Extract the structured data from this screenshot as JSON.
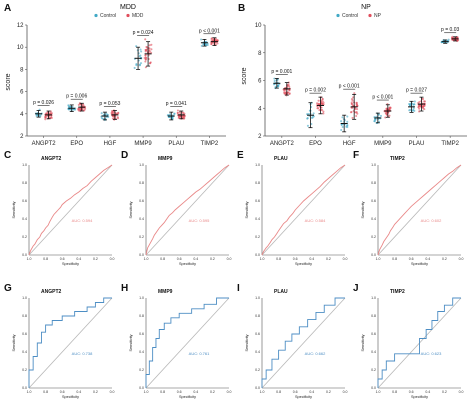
{
  "colors": {
    "control": "#41a9c6",
    "mdd": "#e04e5c",
    "roc_red": "#e98888",
    "roc_blue": "#4d8ec4",
    "diag": "#b8b8b8",
    "axis": "#555555"
  },
  "chart_data": [
    {
      "panel": "A",
      "type": "scatter",
      "title": "MDD",
      "legend": [
        "Control",
        "MDD"
      ],
      "legend_position": "top",
      "ylabel": "score",
      "ylim": [
        2,
        12
      ],
      "yticks": [
        2,
        4,
        6,
        8,
        10,
        12
      ],
      "categories": [
        "ANGPT2",
        "EPO",
        "HGF",
        "MMP9",
        "PLAU",
        "TIMP2"
      ],
      "series": [
        {
          "name": "Control",
          "mean": [
            4.0,
            4.5,
            3.8,
            9.0,
            3.8,
            10.4
          ],
          "sd": [
            0.3,
            0.3,
            0.35,
            1.0,
            0.35,
            0.3
          ]
        },
        {
          "name": "MDD",
          "mean": [
            3.9,
            4.6,
            3.9,
            9.4,
            3.9,
            10.5
          ],
          "sd": [
            0.35,
            0.35,
            0.4,
            1.1,
            0.35,
            0.35
          ]
        }
      ],
      "pvalues": [
        "p = 0.026",
        "p = 0.006",
        "p = 0.053",
        "p = 0.024",
        "p = 0.041",
        "p < 0.001"
      ]
    },
    {
      "panel": "B",
      "type": "scatter",
      "title": "NP",
      "legend": [
        "Control",
        "NP"
      ],
      "legend_position": "top",
      "ylabel": "score",
      "ylim": [
        2,
        10
      ],
      "yticks": [
        2,
        4,
        6,
        8,
        10
      ],
      "categories": [
        "ANGPT2",
        "EPO",
        "HGF",
        "MMP9",
        "PLAU",
        "TIMP2"
      ],
      "series": [
        {
          "name": "Control",
          "mean": [
            5.8,
            3.5,
            2.9,
            3.3,
            4.1,
            8.8
          ],
          "sd": [
            0.35,
            0.9,
            0.6,
            0.35,
            0.4,
            0.12
          ]
        },
        {
          "name": "NP",
          "mean": [
            5.4,
            4.2,
            4.1,
            3.8,
            4.3,
            9.0
          ],
          "sd": [
            0.45,
            0.6,
            0.9,
            0.45,
            0.5,
            0.15
          ]
        }
      ],
      "pvalues": [
        "p = 0.001",
        "p = 0.002",
        "p < 0.001",
        "p < 0.001",
        "p = 0.027",
        "p = 0.03"
      ]
    },
    {
      "panel": "C",
      "type": "line",
      "title": "ANGPT2",
      "auc_label": "AUC: 0.594",
      "xlabel": "Specificity",
      "ylabel": "Sensitivity",
      "x": [
        1.0,
        0.98,
        0.95,
        0.93,
        0.9,
        0.87,
        0.85,
        0.82,
        0.8,
        0.77,
        0.75,
        0.72,
        0.7,
        0.67,
        0.65,
        0.62,
        0.6,
        0.55,
        0.5,
        0.45,
        0.4,
        0.35,
        0.3,
        0.25,
        0.2,
        0.15,
        0.1,
        0.05,
        0.0
      ],
      "y": [
        0.0,
        0.05,
        0.1,
        0.12,
        0.17,
        0.2,
        0.24,
        0.27,
        0.3,
        0.33,
        0.37,
        0.42,
        0.45,
        0.48,
        0.5,
        0.53,
        0.56,
        0.6,
        0.63,
        0.67,
        0.7,
        0.74,
        0.77,
        0.82,
        0.86,
        0.9,
        0.94,
        0.97,
        1.0
      ]
    },
    {
      "panel": "D",
      "type": "line",
      "title": "MMP9",
      "auc_label": "AUC: 0.595",
      "xlabel": "Specificity",
      "ylabel": "Sensitivity",
      "x": [
        1.0,
        0.98,
        0.95,
        0.92,
        0.9,
        0.87,
        0.84,
        0.81,
        0.78,
        0.75,
        0.72,
        0.68,
        0.65,
        0.6,
        0.55,
        0.5,
        0.45,
        0.4,
        0.35,
        0.3,
        0.25,
        0.2,
        0.15,
        0.1,
        0.05,
        0.0
      ],
      "y": [
        0.0,
        0.08,
        0.13,
        0.18,
        0.22,
        0.26,
        0.3,
        0.33,
        0.36,
        0.4,
        0.44,
        0.47,
        0.5,
        0.54,
        0.58,
        0.62,
        0.66,
        0.7,
        0.73,
        0.77,
        0.81,
        0.85,
        0.89,
        0.93,
        0.97,
        1.0
      ]
    },
    {
      "panel": "E",
      "type": "line",
      "title": "PLAU",
      "auc_label": "AUC: 0.584",
      "xlabel": "Specificity",
      "ylabel": "Sensitivity",
      "x": [
        1.0,
        0.98,
        0.95,
        0.93,
        0.9,
        0.88,
        0.85,
        0.82,
        0.8,
        0.77,
        0.74,
        0.7,
        0.67,
        0.63,
        0.6,
        0.55,
        0.5,
        0.45,
        0.4,
        0.35,
        0.3,
        0.25,
        0.2,
        0.15,
        0.1,
        0.05,
        0.0
      ],
      "y": [
        0.0,
        0.04,
        0.08,
        0.1,
        0.14,
        0.17,
        0.2,
        0.24,
        0.27,
        0.31,
        0.35,
        0.38,
        0.42,
        0.46,
        0.5,
        0.55,
        0.6,
        0.64,
        0.68,
        0.72,
        0.76,
        0.81,
        0.85,
        0.89,
        0.93,
        0.97,
        1.0
      ]
    },
    {
      "panel": "F",
      "type": "line",
      "title": "TIMP2",
      "auc_label": "AUC: 0.602",
      "xlabel": "Specificity",
      "ylabel": "Sensitivity",
      "x": [
        1.0,
        0.98,
        0.95,
        0.93,
        0.9,
        0.87,
        0.85,
        0.82,
        0.8,
        0.76,
        0.72,
        0.68,
        0.64,
        0.6,
        0.55,
        0.5,
        0.45,
        0.4,
        0.35,
        0.3,
        0.25,
        0.2,
        0.15,
        0.1,
        0.05,
        0.0
      ],
      "y": [
        0.0,
        0.06,
        0.11,
        0.15,
        0.19,
        0.23,
        0.27,
        0.31,
        0.34,
        0.38,
        0.42,
        0.46,
        0.5,
        0.54,
        0.58,
        0.62,
        0.66,
        0.7,
        0.74,
        0.78,
        0.82,
        0.86,
        0.9,
        0.93,
        0.97,
        1.0
      ]
    },
    {
      "panel": "G",
      "type": "line",
      "title": "ANGPT2",
      "auc_label": "AUC: 0.738",
      "xlabel": "Specificity",
      "ylabel": "Sensitivity",
      "x": [
        1.0,
        1.0,
        0.95,
        0.95,
        0.9,
        0.9,
        0.85,
        0.85,
        0.8,
        0.8,
        0.72,
        0.72,
        0.6,
        0.6,
        0.45,
        0.45,
        0.3,
        0.3,
        0.2,
        0.2,
        0.1,
        0.1,
        0.0
      ],
      "y": [
        0.0,
        0.2,
        0.2,
        0.35,
        0.35,
        0.5,
        0.5,
        0.62,
        0.62,
        0.7,
        0.7,
        0.75,
        0.75,
        0.8,
        0.8,
        0.85,
        0.85,
        0.9,
        0.9,
        0.95,
        0.95,
        1.0,
        1.0
      ]
    },
    {
      "panel": "H",
      "type": "line",
      "title": "MMP9",
      "auc_label": "AUC: 0.761",
      "xlabel": "Specificity",
      "ylabel": "Sensitivity",
      "x": [
        1.0,
        1.0,
        0.96,
        0.96,
        0.92,
        0.92,
        0.88,
        0.88,
        0.84,
        0.84,
        0.78,
        0.78,
        0.7,
        0.7,
        0.6,
        0.6,
        0.45,
        0.45,
        0.3,
        0.3,
        0.15,
        0.15,
        0.0
      ],
      "y": [
        0.0,
        0.15,
        0.15,
        0.3,
        0.3,
        0.45,
        0.45,
        0.55,
        0.55,
        0.65,
        0.65,
        0.72,
        0.72,
        0.78,
        0.78,
        0.83,
        0.83,
        0.88,
        0.88,
        0.93,
        0.93,
        1.0,
        1.0
      ]
    },
    {
      "panel": "I",
      "type": "line",
      "title": "PLAU",
      "auc_label": "AUC: 0.662",
      "xlabel": "Specificity",
      "ylabel": "Sensitivity",
      "x": [
        1.0,
        1.0,
        0.95,
        0.95,
        0.88,
        0.88,
        0.8,
        0.8,
        0.72,
        0.72,
        0.64,
        0.64,
        0.55,
        0.55,
        0.45,
        0.45,
        0.35,
        0.35,
        0.25,
        0.25,
        0.12,
        0.12,
        0.0
      ],
      "y": [
        0.0,
        0.1,
        0.1,
        0.2,
        0.2,
        0.32,
        0.32,
        0.42,
        0.42,
        0.52,
        0.52,
        0.6,
        0.6,
        0.68,
        0.68,
        0.76,
        0.76,
        0.84,
        0.84,
        0.92,
        0.92,
        1.0,
        1.0
      ]
    },
    {
      "panel": "J",
      "type": "line",
      "title": "TIMP2",
      "auc_label": "AUC: 0.623",
      "xlabel": "Specificity",
      "ylabel": "Sensitivity",
      "x": [
        1.0,
        1.0,
        0.95,
        0.95,
        0.9,
        0.9,
        0.8,
        0.8,
        0.75,
        0.75,
        0.5,
        0.5,
        0.42,
        0.42,
        0.35,
        0.35,
        0.28,
        0.28,
        0.2,
        0.2,
        0.1,
        0.1,
        0.0
      ],
      "y": [
        0.0,
        0.1,
        0.1,
        0.2,
        0.2,
        0.3,
        0.3,
        0.38,
        0.38,
        0.38,
        0.38,
        0.55,
        0.55,
        0.65,
        0.65,
        0.75,
        0.75,
        0.85,
        0.85,
        0.92,
        0.92,
        1.0,
        1.0
      ]
    }
  ]
}
